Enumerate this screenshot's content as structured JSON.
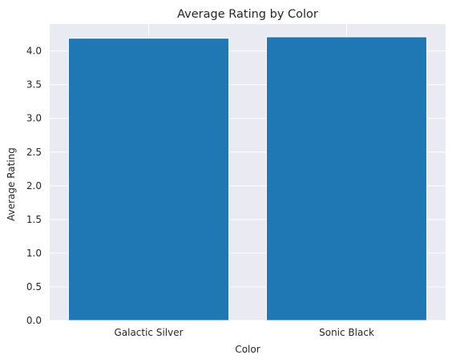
{
  "chart_data": {
    "type": "bar",
    "title": "Average Rating by Color",
    "xlabel": "Color",
    "ylabel": "Average Rating",
    "categories": [
      "Galactic Silver",
      "Sonic Black"
    ],
    "values": [
      4.19,
      4.21
    ],
    "ylim": [
      0,
      4.4
    ],
    "yticks": [
      "0.0",
      "0.5",
      "1.0",
      "1.5",
      "2.0",
      "2.5",
      "3.0",
      "3.5",
      "4.0"
    ],
    "grid": true,
    "legend": "none",
    "colors": {
      "bar": "#1f77b4",
      "background": "#eaeaf2",
      "grid": "#ffffff",
      "text": "#262626"
    }
  }
}
